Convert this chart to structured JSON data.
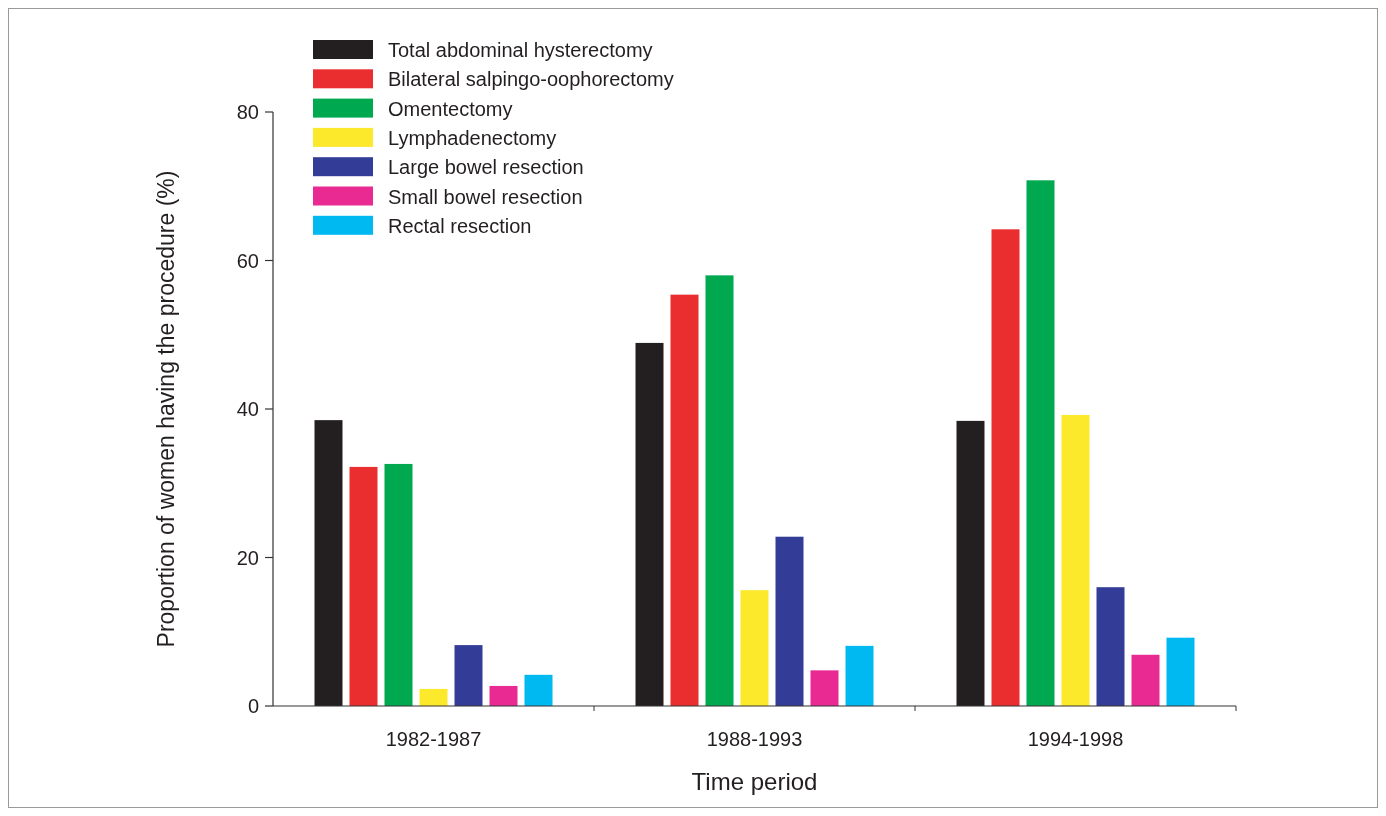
{
  "chart_data": {
    "type": "bar",
    "xlabel": "Time period",
    "ylabel": "Proportion of women having the procedure (%)",
    "categories": [
      "1982-1987",
      "1988-1993",
      "1994-1998"
    ],
    "series": [
      {
        "name": "Total abdominal hysterectomy",
        "color": "#231f20",
        "values": [
          38.5,
          48.9,
          38.4
        ]
      },
      {
        "name": "Bilateral salpingo-oophorectomy",
        "color": "#ea2e2f",
        "values": [
          32.2,
          55.4,
          64.2
        ]
      },
      {
        "name": "Omentectomy",
        "color": "#00a94f",
        "values": [
          32.6,
          58.0,
          70.8
        ]
      },
      {
        "name": "Lymphadenectomy",
        "color": "#fce92c",
        "values": [
          2.3,
          15.6,
          39.2
        ]
      },
      {
        "name": "Large bowel resection",
        "color": "#333d97",
        "values": [
          8.2,
          22.8,
          16.0
        ]
      },
      {
        "name": "Small bowel resection",
        "color": "#e92a92",
        "values": [
          2.7,
          4.8,
          6.9
        ]
      },
      {
        "name": "Rectal resection",
        "color": "#00b9f1",
        "values": [
          4.2,
          8.1,
          9.2
        ]
      }
    ],
    "ylim": [
      0,
      80
    ],
    "yticks": [
      0,
      20,
      40,
      60,
      80
    ],
    "grid": false,
    "legend": "top left"
  }
}
